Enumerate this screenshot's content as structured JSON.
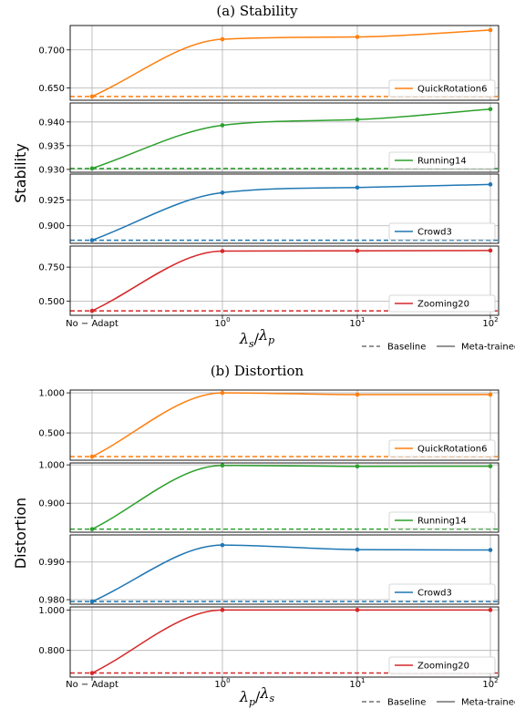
{
  "chart_data": [
    {
      "type": "line",
      "title": "(a) Stability",
      "ylabel": "Stability",
      "xlabel_main": "λ",
      "xlabel_sub_num": "s",
      "xlabel_sub_den": "p",
      "x_ticks": [
        {
          "label": "No − Adapt",
          "pos": 0
        },
        {
          "base": "10",
          "exp": "0",
          "pos": 1
        },
        {
          "base": "10",
          "exp": "1",
          "pos": 2
        },
        {
          "base": "10",
          "exp": "2",
          "pos": 3
        }
      ],
      "legend": {
        "baseline": "Baseline",
        "meta": "Meta-trained"
      },
      "panels": [
        {
          "name": "QuickRotation6",
          "color": "#ff7f0e",
          "ylim": [
            0.634,
            0.732
          ],
          "yticks": [
            {
              "v": 0.65,
              "t": "0.650"
            },
            {
              "v": 0.7,
              "t": "0.700"
            }
          ],
          "baseline": 0.639,
          "values": [
            0.639,
            0.714,
            0.717,
            0.726
          ]
        },
        {
          "name": "Running14",
          "color": "#2ca02c",
          "ylim": [
            0.9294,
            0.944
          ],
          "yticks": [
            {
              "v": 0.93,
              "t": "0.930"
            },
            {
              "v": 0.935,
              "t": "0.935"
            },
            {
              "v": 0.94,
              "t": "0.940"
            }
          ],
          "baseline": 0.9302,
          "values": [
            0.9302,
            0.9393,
            0.9405,
            0.9427
          ]
        },
        {
          "name": "Crowd3",
          "color": "#1f77b4",
          "ylim": [
            0.883,
            0.95
          ],
          "yticks": [
            {
              "v": 0.9,
              "t": "0.900"
            },
            {
              "v": 0.925,
              "t": "0.925"
            }
          ],
          "baseline": 0.886,
          "values": [
            0.886,
            0.932,
            0.937,
            0.94
          ]
        },
        {
          "name": "Zooming20",
          "color": "#d62728",
          "ylim": [
            0.395,
            0.905
          ],
          "yticks": [
            {
              "v": 0.5,
              "t": "0.500"
            },
            {
              "v": 0.75,
              "t": "0.750"
            }
          ],
          "baseline": 0.428,
          "values": [
            0.428,
            0.868,
            0.87,
            0.872
          ]
        }
      ]
    },
    {
      "type": "line",
      "title": "(b) Distortion",
      "ylabel": "Distortion",
      "xlabel_main": "λ",
      "xlabel_sub_num": "p",
      "xlabel_sub_den": "s",
      "x_ticks": [
        {
          "label": "No − Adapt",
          "pos": 0
        },
        {
          "base": "10",
          "exp": "0",
          "pos": 1
        },
        {
          "base": "10",
          "exp": "1",
          "pos": 2
        },
        {
          "base": "10",
          "exp": "2",
          "pos": 3
        }
      ],
      "legend": {
        "baseline": "Baseline",
        "meta": "Meta-trained"
      },
      "panels": [
        {
          "name": "QuickRotation6",
          "color": "#ff7f0e",
          "ylim": [
            0.16,
            1.035
          ],
          "yticks": [
            {
              "v": 0.5,
              "t": "0.500"
            },
            {
              "v": 1.0,
              "t": "1.000"
            }
          ],
          "baseline": 0.205,
          "values": [
            0.205,
            1.0,
            0.978,
            0.978
          ]
        },
        {
          "name": "Running14",
          "color": "#2ca02c",
          "ylim": [
            0.8245,
            1.005
          ],
          "yticks": [
            {
              "v": 0.9,
              "t": "0.900"
            },
            {
              "v": 1.0,
              "t": "1.000"
            }
          ],
          "baseline": 0.8325,
          "values": [
            0.8325,
            0.9985,
            0.996,
            0.9965
          ]
        },
        {
          "name": "Crowd3",
          "color": "#1f77b4",
          "ylim": [
            0.9788,
            0.9972
          ],
          "yticks": [
            {
              "v": 0.98,
              "t": "0.980"
            },
            {
              "v": 0.99,
              "t": "0.990"
            }
          ],
          "baseline": 0.9795,
          "values": [
            0.9795,
            0.9945,
            0.9933,
            0.9932
          ]
        },
        {
          "name": "Zooming20",
          "color": "#d62728",
          "ylim": [
            0.668,
            1.015
          ],
          "yticks": [
            {
              "v": 0.8,
              "t": "0.800"
            },
            {
              "v": 1.0,
              "t": "1.000"
            }
          ],
          "baseline": 0.688,
          "values": [
            0.688,
            1.0,
            1.0,
            1.0
          ]
        }
      ]
    }
  ]
}
